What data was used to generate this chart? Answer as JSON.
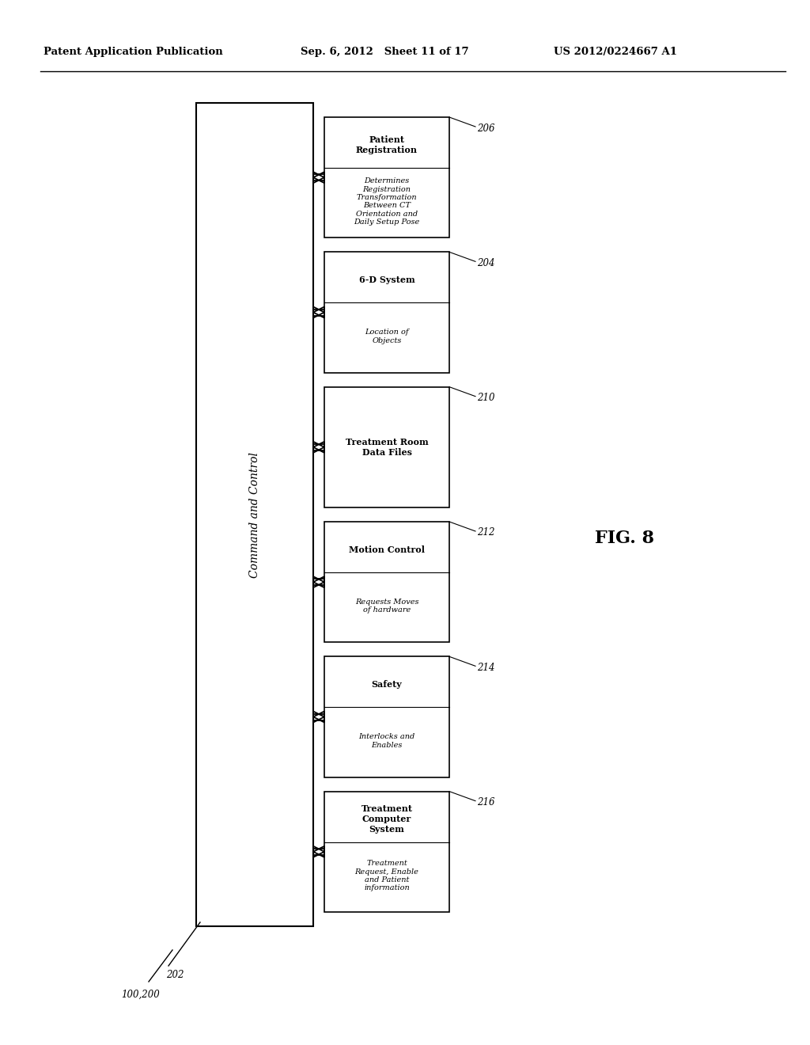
{
  "bg_color": "#ffffff",
  "header_left": "Patent Application Publication",
  "header_mid": "Sep. 6, 2012   Sheet 11 of 17",
  "header_right": "US 2012/0224667 A1",
  "fig_label": "FIG. 8",
  "label_100_200": "100,200",
  "label_202": "202",
  "main_box_label": "Command and Control",
  "boxes": [
    {
      "id": "206",
      "title": "Patient\nRegistration",
      "body": "Determines\nRegistration\nTransformation\nBetween CT\nOrientation and\nDaily Setup Pose",
      "label": "206",
      "has_body": true
    },
    {
      "id": "204",
      "title": "6-D System",
      "body": "Location of\nObjects",
      "label": "204",
      "has_body": true
    },
    {
      "id": "210",
      "title": "Treatment Room\nData Files",
      "body": "",
      "label": "210",
      "has_body": false
    },
    {
      "id": "212",
      "title": "Motion Control",
      "body": "Requests Moves\nof hardware",
      "label": "212",
      "has_body": true
    },
    {
      "id": "214",
      "title": "Safety",
      "body": "Interlocks and\nEnables",
      "label": "214",
      "has_body": true
    },
    {
      "id": "216",
      "title": "Treatment\nComputer\nSystem",
      "body": "Treatment\nRequest, Enable\nand Patient\ninformation",
      "label": "216",
      "has_body": true
    }
  ]
}
